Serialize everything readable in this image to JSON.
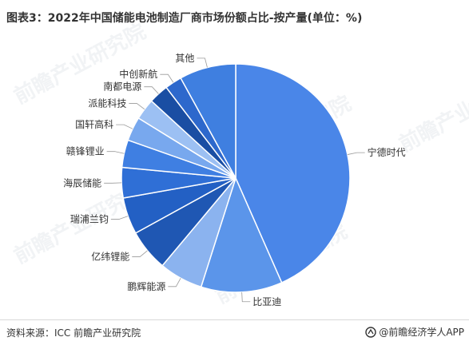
{
  "title": "图表3：2022年中国储能电池制造厂商市场份额占比-按产量(单位：%)",
  "source": "资料来源：ICC 前瞻产业研究院",
  "brand": "@前瞻经济学人APP",
  "watermark": "前瞻产业研究院",
  "chart_data": {
    "type": "pie",
    "title": "图表3：2022年中国储能电池制造厂商市场份额占比-按产量(单位：%)",
    "unit": "%",
    "legend": "none (labels beside slices)",
    "slices": [
      {
        "label": "宁德时代",
        "value": 43.4,
        "color": "#4a86e8"
      },
      {
        "label": "比亚迪",
        "value": 11.5,
        "color": "#5b95ea"
      },
      {
        "label": "鹏辉能源",
        "value": 6.2,
        "color": "#8bb3ef"
      },
      {
        "label": "亿纬锂能",
        "value": 5.9,
        "color": "#1f57b3"
      },
      {
        "label": "瑞浦兰钧",
        "value": 5.2,
        "color": "#2360c4"
      },
      {
        "label": "海辰储能",
        "value": 4.3,
        "color": "#2f6fd6"
      },
      {
        "label": "赣锋锂业",
        "value": 3.9,
        "color": "#3f7fe2"
      },
      {
        "label": "国轩高科",
        "value": 3.4,
        "color": "#78a8ee"
      },
      {
        "label": "派能科技",
        "value": 3.0,
        "color": "#9cc0f3"
      },
      {
        "label": "南都电源",
        "value": 2.8,
        "color": "#1a4ea3"
      },
      {
        "label": "中创新航",
        "value": 2.4,
        "color": "#2d68cc"
      },
      {
        "label": "其他",
        "value": 8.0,
        "color": "#3f7fe0"
      }
    ]
  }
}
